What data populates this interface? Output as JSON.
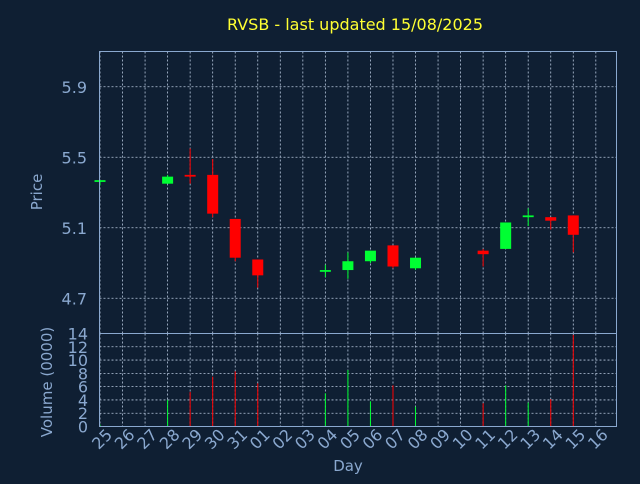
{
  "colors": {
    "background": "#0f1f33",
    "title": "#ffff33",
    "axis_text": "#8aa8cf",
    "frame": "#8aa8cf",
    "grid": "#b8c8de",
    "up": "#00ff33",
    "down": "#ff0000"
  },
  "chart_data": [
    {
      "type": "candlestick",
      "title": "RVSB - last updated 15/08/2025",
      "ylabel": "Price",
      "xlabel": "",
      "ylim": [
        4.5,
        6.1
      ],
      "yticks": [
        4.7,
        5.1,
        5.5,
        5.9
      ],
      "grid": true,
      "x": [
        "25",
        "26",
        "27",
        "28",
        "29",
        "30",
        "31",
        "01",
        "02",
        "03",
        "04",
        "05",
        "06",
        "07",
        "08",
        "09",
        "10",
        "11",
        "12",
        "13",
        "14",
        "15",
        "16"
      ],
      "candles": [
        {
          "day": "25",
          "open": 5.36,
          "high": 5.37,
          "low": 5.34,
          "close": 5.37
        },
        {
          "day": "28",
          "open": 5.35,
          "high": 5.4,
          "low": 5.35,
          "close": 5.39
        },
        {
          "day": "29",
          "open": 5.4,
          "high": 5.55,
          "low": 5.35,
          "close": 5.39
        },
        {
          "day": "30",
          "open": 5.4,
          "high": 5.49,
          "low": 5.16,
          "close": 5.18
        },
        {
          "day": "31",
          "open": 5.15,
          "high": 5.15,
          "low": 4.91,
          "close": 4.93
        },
        {
          "day": "01",
          "open": 4.92,
          "high": 4.92,
          "low": 4.76,
          "close": 4.83
        },
        {
          "day": "04",
          "open": 4.85,
          "high": 4.89,
          "low": 4.82,
          "close": 4.86
        },
        {
          "day": "05",
          "open": 4.86,
          "high": 4.96,
          "low": 4.81,
          "close": 4.91
        },
        {
          "day": "06",
          "open": 4.91,
          "high": 4.97,
          "low": 4.9,
          "close": 4.97
        },
        {
          "day": "07",
          "open": 5.0,
          "high": 5.0,
          "low": 4.87,
          "close": 4.88
        },
        {
          "day": "08",
          "open": 4.87,
          "high": 4.93,
          "low": 4.86,
          "close": 4.93
        },
        {
          "day": "11",
          "open": 4.97,
          "high": 4.98,
          "low": 4.88,
          "close": 4.95
        },
        {
          "day": "12",
          "open": 4.98,
          "high": 5.13,
          "low": 4.98,
          "close": 5.13
        },
        {
          "day": "13",
          "open": 5.16,
          "high": 5.21,
          "low": 5.11,
          "close": 5.17
        },
        {
          "day": "14",
          "open": 5.16,
          "high": 5.16,
          "low": 5.09,
          "close": 5.14
        },
        {
          "day": "15",
          "open": 5.17,
          "high": 5.17,
          "low": 4.96,
          "close": 5.06
        }
      ]
    },
    {
      "type": "bar",
      "ylabel": "Volume (0000)",
      "xlabel": "Day",
      "ylim": [
        0,
        14
      ],
      "yticks": [
        0,
        2,
        4,
        6,
        8,
        10,
        12,
        14
      ],
      "grid": true,
      "categories": [
        "25",
        "26",
        "27",
        "28",
        "29",
        "30",
        "31",
        "01",
        "02",
        "03",
        "04",
        "05",
        "06",
        "07",
        "08",
        "09",
        "10",
        "11",
        "12",
        "13",
        "14",
        "15",
        "16"
      ],
      "values": [
        0.3,
        0,
        0,
        4,
        5.2,
        7.5,
        8.3,
        6.5,
        0,
        0,
        5,
        8.5,
        3.8,
        6.2,
        3,
        0,
        0,
        3.5,
        6.2,
        3.6,
        4.1,
        13.8,
        0
      ],
      "direction": [
        "up",
        "",
        "",
        "up",
        "down",
        "down",
        "down",
        "down",
        "",
        "",
        "up",
        "up",
        "up",
        "down",
        "up",
        "",
        "",
        "down",
        "up",
        "up",
        "down",
        "down",
        ""
      ]
    }
  ]
}
